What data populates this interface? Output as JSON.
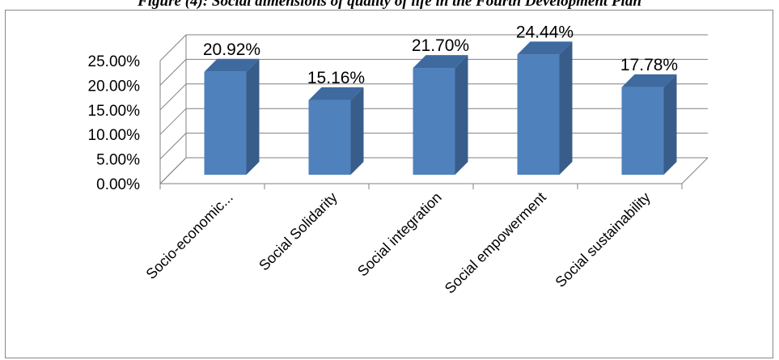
{
  "chart_data": {
    "type": "bar",
    "title": "Figure (4): Social dimensions of quality of life in the Fourth Development Plan",
    "categories": [
      "Socio-economic...",
      "Social Solidarity",
      "Social integration",
      "Social empowerment",
      "Social sustainability"
    ],
    "values": [
      20.92,
      15.16,
      21.7,
      24.44,
      17.78
    ],
    "data_labels": [
      "20.92%",
      "15.16%",
      "21.70%",
      "24.44%",
      "17.78%"
    ],
    "ylim": [
      0,
      25
    ],
    "yticks": [
      "0.00%",
      "5.00%",
      "10.00%",
      "15.00%",
      "20.00%",
      "25.00%"
    ],
    "grid": true,
    "style": "3d-column",
    "bar_color": "#4F81BD",
    "xlabel": "",
    "ylabel": ""
  }
}
